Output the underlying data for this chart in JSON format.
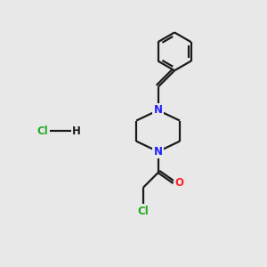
{
  "background_color": "#e8e8e8",
  "bond_color": "#1a1a1a",
  "nitrogen_color": "#2020ff",
  "oxygen_color": "#ff2020",
  "chlorine_color": "#22aa22",
  "line_width": 1.6,
  "fig_width": 3.0,
  "fig_height": 3.0,
  "dpi": 100,
  "xlim": [
    0,
    10
  ],
  "ylim": [
    0,
    10
  ]
}
